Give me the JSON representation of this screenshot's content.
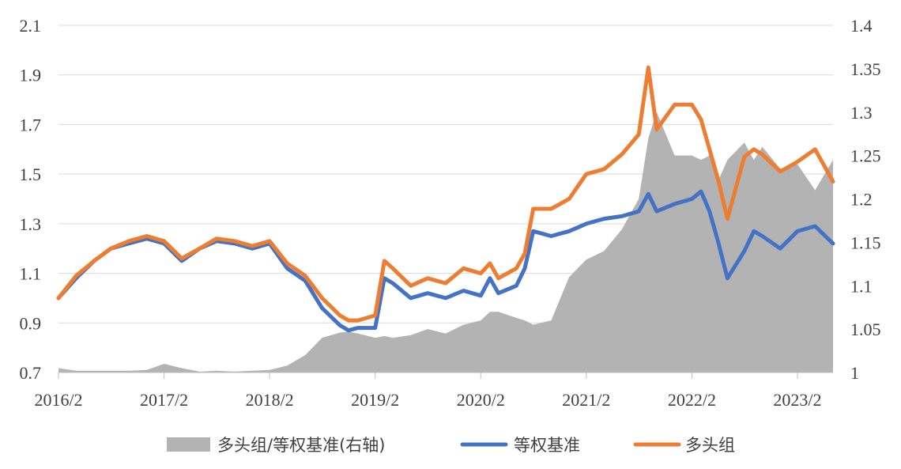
{
  "chart_data": {
    "type": "line",
    "title": "",
    "xlabel": "",
    "ylabel": "",
    "x_tick_labels": [
      "2016/2",
      "2017/2",
      "2018/2",
      "2019/2",
      "2020/2",
      "2021/2",
      "2022/2",
      "2023/2"
    ],
    "x_tick_positions": [
      2016.083,
      2017.083,
      2018.083,
      2019.083,
      2020.083,
      2021.083,
      2022.083,
      2023.083
    ],
    "xlim": [
      2016.083,
      2023.42
    ],
    "ylim_left": [
      0.7,
      2.1
    ],
    "yticks_left": [
      "0.7",
      "0.9",
      "1.1",
      "1.3",
      "1.5",
      "1.7",
      "1.9",
      "2.1"
    ],
    "ylim_right": [
      1.0,
      1.4
    ],
    "yticks_right": [
      "1",
      "1.05",
      "1.1",
      "1.15",
      "1.2",
      "1.25",
      "1.3",
      "1.35",
      "1.4"
    ],
    "grid": true,
    "legend_position": "bottom",
    "legend": [
      "多头组/等权基准(右轴)",
      "等权基准",
      "多头组"
    ],
    "colors": {
      "ratio": "#b3b3b3",
      "benchmark": "#4472c4",
      "long": "#ed7d31"
    },
    "x": [
      2016.083,
      2016.25,
      2016.42,
      2016.58,
      2016.75,
      2016.92,
      2017.083,
      2017.25,
      2017.42,
      2017.58,
      2017.75,
      2017.92,
      2018.083,
      2018.25,
      2018.42,
      2018.58,
      2018.75,
      2018.83,
      2018.92,
      2019.083,
      2019.17,
      2019.25,
      2019.42,
      2019.58,
      2019.75,
      2019.92,
      2020.083,
      2020.17,
      2020.25,
      2020.42,
      2020.5,
      2020.58,
      2020.75,
      2020.92,
      2021.083,
      2021.25,
      2021.42,
      2021.58,
      2021.67,
      2021.75,
      2021.92,
      2022.083,
      2022.17,
      2022.25,
      2022.33,
      2022.42,
      2022.58,
      2022.67,
      2022.75,
      2022.92,
      2023.083,
      2023.25,
      2023.42
    ],
    "series": [
      {
        "name": "多头组/等权基准(右轴)",
        "axis": "right",
        "values": [
          1.005,
          1.002,
          1.002,
          1.002,
          1.002,
          1.003,
          1.01,
          1.005,
          1.001,
          1.002,
          1.001,
          1.002,
          1.003,
          1.008,
          1.02,
          1.04,
          1.046,
          1.047,
          1.045,
          1.04,
          1.042,
          1.04,
          1.043,
          1.05,
          1.045,
          1.055,
          1.06,
          1.07,
          1.07,
          1.063,
          1.06,
          1.055,
          1.06,
          1.11,
          1.13,
          1.14,
          1.165,
          1.2,
          1.27,
          1.3,
          1.25,
          1.25,
          1.245,
          1.25,
          1.22,
          1.245,
          1.265,
          1.245,
          1.26,
          1.235,
          1.24,
          1.21,
          1.245
        ]
      },
      {
        "name": "等权基准",
        "axis": "left",
        "values": [
          1.0,
          1.08,
          1.15,
          1.2,
          1.22,
          1.24,
          1.22,
          1.15,
          1.2,
          1.23,
          1.22,
          1.2,
          1.22,
          1.12,
          1.07,
          0.96,
          0.89,
          0.87,
          0.88,
          0.88,
          1.08,
          1.06,
          1.0,
          1.02,
          1.0,
          1.03,
          1.01,
          1.08,
          1.02,
          1.05,
          1.12,
          1.27,
          1.25,
          1.27,
          1.3,
          1.32,
          1.33,
          1.35,
          1.42,
          1.35,
          1.38,
          1.4,
          1.43,
          1.35,
          1.23,
          1.08,
          1.19,
          1.27,
          1.25,
          1.2,
          1.27,
          1.29,
          1.22
        ]
      },
      {
        "name": "多头组",
        "axis": "left",
        "values": [
          1.0,
          1.09,
          1.15,
          1.2,
          1.23,
          1.25,
          1.23,
          1.16,
          1.2,
          1.24,
          1.23,
          1.21,
          1.23,
          1.14,
          1.09,
          1.0,
          0.93,
          0.91,
          0.91,
          0.93,
          1.15,
          1.12,
          1.05,
          1.08,
          1.06,
          1.12,
          1.1,
          1.14,
          1.08,
          1.12,
          1.18,
          1.36,
          1.36,
          1.4,
          1.5,
          1.52,
          1.58,
          1.66,
          1.93,
          1.68,
          1.78,
          1.78,
          1.72,
          1.6,
          1.48,
          1.32,
          1.57,
          1.6,
          1.58,
          1.51,
          1.55,
          1.6,
          1.47
        ]
      }
    ]
  }
}
